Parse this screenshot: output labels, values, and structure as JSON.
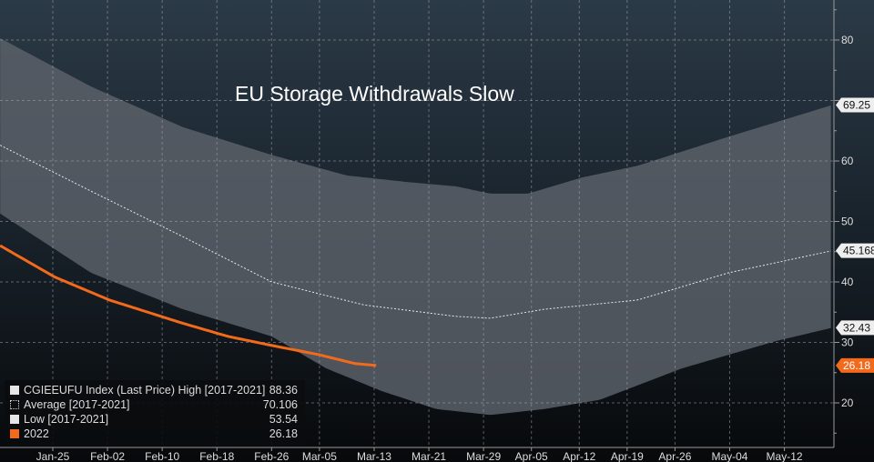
{
  "title": "EU Storage Withdrawals Slow",
  "colors": {
    "high_low_band": "#5a6068",
    "series_2022": "#f26a1b",
    "average": "#e8e8e8"
  },
  "legend": [
    {
      "label": "CGIEEUFU Index (Last Price) High [2017-2021]",
      "value": "88.36",
      "swatch": "#e6e6e6"
    },
    {
      "label": "Average  [2017-2021]",
      "value": "70.106",
      "swatch": "dotted"
    },
    {
      "label": "Low  [2017-2021]",
      "value": "53.54",
      "swatch": "#e6e6e6"
    },
    {
      "label": "2022",
      "value": "26.18",
      "swatch": "#f26a1b"
    }
  ],
  "chart_data": {
    "type": "area",
    "title": "EU Storage Withdrawals Slow",
    "xlabel": "",
    "ylabel": "",
    "ylim": [
      10,
      88
    ],
    "yticks": [
      20,
      30,
      40,
      50,
      60,
      70,
      80
    ],
    "x_unit": "days since Jan-25",
    "xticks": [
      {
        "day": 0,
        "label": "Jan-25"
      },
      {
        "day": 8,
        "label": "Feb-02"
      },
      {
        "day": 16,
        "label": "Feb-10"
      },
      {
        "day": 24,
        "label": "Feb-18"
      },
      {
        "day": 32,
        "label": "Feb-26"
      },
      {
        "day": 39,
        "label": "Mar-05"
      },
      {
        "day": 47,
        "label": "Mar-13"
      },
      {
        "day": 55,
        "label": "Mar-21"
      },
      {
        "day": 63,
        "label": "Mar-29"
      },
      {
        "day": 70,
        "label": "Apr-05"
      },
      {
        "day": 77,
        "label": "Apr-12"
      },
      {
        "day": 84,
        "label": "Apr-19"
      },
      {
        "day": 91,
        "label": "Apr-26"
      },
      {
        "day": 99,
        "label": "May-04"
      },
      {
        "day": 107,
        "label": "May-12"
      }
    ],
    "xlim": [
      -7.7,
      114
    ],
    "grid": true,
    "series": [
      {
        "name": "High [2017-2021]",
        "x": [
          -7.7,
          5.6,
          19,
          32,
          43,
          52,
          59,
          64,
          69.5,
          77.5,
          85.5,
          98.8,
          114
        ],
        "y": [
          80.3,
          72.3,
          65.6,
          61,
          57.6,
          56.5,
          55.8,
          54.6,
          54.6,
          57.3,
          59.2,
          64,
          69.25
        ]
      },
      {
        "name": "Average [2017-2021]",
        "x": [
          -7.7,
          5.6,
          19,
          32,
          45.5,
          59,
          64,
          72,
          85.5,
          98.8,
          114
        ],
        "y": [
          62.6,
          55,
          47.5,
          40,
          36.2,
          34.3,
          34,
          35.5,
          37,
          41.5,
          45.168
        ]
      },
      {
        "name": "Low [2017-2021]",
        "x": [
          -7.7,
          5.6,
          19,
          32,
          40,
          48,
          56,
          64,
          72,
          80,
          92,
          105.7,
          114
        ],
        "y": [
          51.3,
          41.5,
          35.5,
          31,
          25.7,
          22,
          19,
          18,
          19,
          20.5,
          25.7,
          30.2,
          32.43
        ]
      },
      {
        "name": "2022",
        "x": [
          -7.7,
          0.3,
          8.3,
          18.9,
          25.6,
          32,
          38.8,
          44.2,
          47.4
        ],
        "y": [
          46,
          40.8,
          37,
          33.2,
          31,
          29.5,
          28,
          26.5,
          26.18
        ]
      }
    ],
    "last_value_labels": [
      {
        "series": "High [2017-2021]",
        "label": "69.25"
      },
      {
        "series": "Average [2017-2021]",
        "label": "45.168"
      },
      {
        "series": "Low [2017-2021]",
        "label": "32.43"
      },
      {
        "series": "2022",
        "label": "26.18"
      }
    ]
  }
}
